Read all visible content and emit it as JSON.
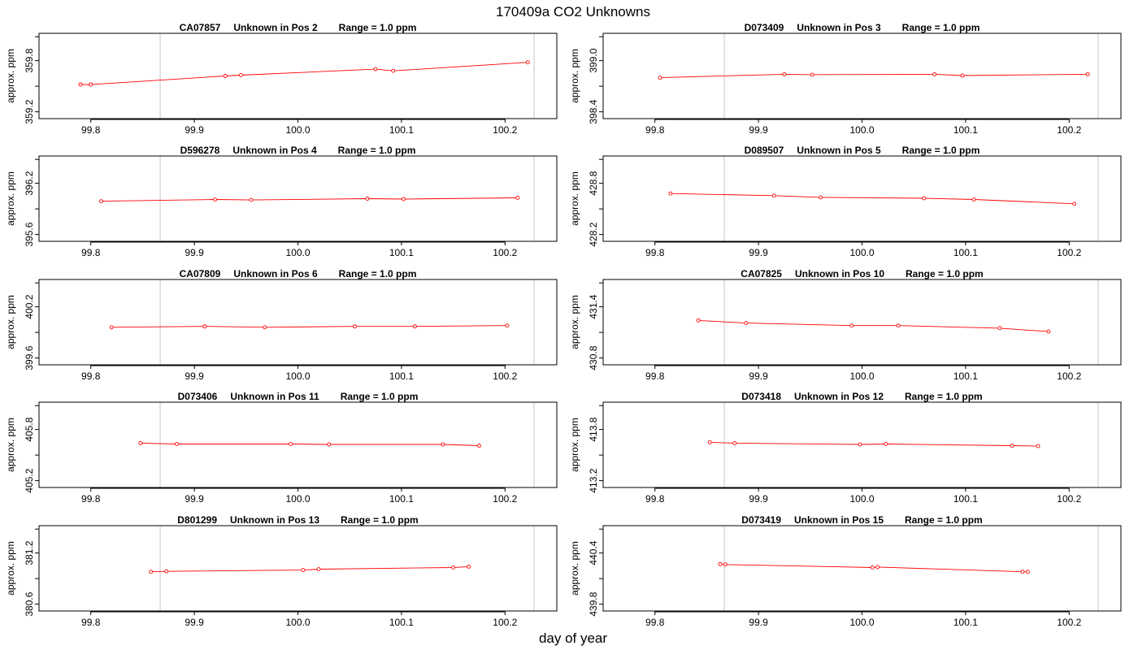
{
  "title": "170409a  CO2 Unknowns",
  "xlabel": "day of year",
  "colors": {
    "series": "#ff0000",
    "marker_lines": "#d3d3d3",
    "frame": "#000000"
  },
  "chart_data": [
    {
      "type": "line",
      "sample": "CA07857",
      "position": "Unknown in Pos 2",
      "range_label": "Range = 1.0 ppm",
      "ylabel": "approx. ppm",
      "xlim": [
        99.75,
        100.25
      ],
      "ylim": [
        359.12,
        360.12
      ],
      "xticks": [
        "99.8",
        "99.9",
        "100.0",
        "100.1",
        "100.2"
      ],
      "yticks": [
        "359.2",
        "359.8"
      ],
      "vlines": [
        99.867,
        100.228
      ],
      "x": [
        99.79,
        99.8,
        99.93,
        99.945,
        100.075,
        100.092,
        100.222
      ],
      "y": [
        359.52,
        359.52,
        359.62,
        359.63,
        359.7,
        359.68,
        359.78
      ]
    },
    {
      "type": "line",
      "sample": "D073409",
      "position": "Unknown in Pos 3",
      "range_label": "Range = 1.0 ppm",
      "ylabel": "approx. ppm",
      "xlim": [
        99.75,
        100.25
      ],
      "ylim": [
        398.32,
        399.32
      ],
      "xticks": [
        "99.8",
        "99.9",
        "100.0",
        "100.1",
        "100.2"
      ],
      "yticks": [
        "398.4",
        "399.0"
      ],
      "vlines": [
        99.867,
        100.228
      ],
      "x": [
        99.805,
        99.925,
        99.952,
        100.07,
        100.097,
        100.218
      ],
      "y": [
        398.8,
        398.84,
        398.835,
        398.84,
        398.825,
        398.84
      ]
    },
    {
      "type": "line",
      "sample": "D596278",
      "position": "Unknown in Pos 4",
      "range_label": "Range = 1.0 ppm",
      "ylabel": "approx. ppm",
      "xlim": [
        99.75,
        100.25
      ],
      "ylim": [
        395.52,
        396.52
      ],
      "xticks": [
        "99.8",
        "99.9",
        "100.0",
        "100.1",
        "100.2"
      ],
      "yticks": [
        "395.6",
        "396.2"
      ],
      "vlines": [
        99.867,
        100.228
      ],
      "x": [
        99.81,
        99.92,
        99.955,
        100.067,
        100.102,
        100.212
      ],
      "y": [
        395.99,
        396.01,
        396.005,
        396.02,
        396.015,
        396.03
      ]
    },
    {
      "type": "line",
      "sample": "D089507",
      "position": "Unknown in Pos 5",
      "range_label": "Range = 1.0 ppm",
      "ylabel": "approx. ppm",
      "xlim": [
        99.75,
        100.25
      ],
      "ylim": [
        428.12,
        429.12
      ],
      "xticks": [
        "99.8",
        "99.9",
        "100.0",
        "100.1",
        "100.2"
      ],
      "yticks": [
        "428.2",
        "428.8"
      ],
      "vlines": [
        99.867,
        100.228
      ],
      "x": [
        99.815,
        99.915,
        99.96,
        100.06,
        100.108,
        100.205
      ],
      "y": [
        428.68,
        428.655,
        428.635,
        428.625,
        428.61,
        428.56
      ]
    },
    {
      "type": "line",
      "sample": "CA07809",
      "position": "Unknown in Pos 6",
      "range_label": "Range = 1.0 ppm",
      "ylabel": "approx. ppm",
      "xlim": [
        99.75,
        100.25
      ],
      "ylim": [
        399.52,
        400.52
      ],
      "xticks": [
        "99.8",
        "99.9",
        "100.0",
        "100.1",
        "100.2"
      ],
      "yticks": [
        "399.6",
        "400.2"
      ],
      "vlines": [
        99.867,
        100.228
      ],
      "x": [
        99.82,
        99.91,
        99.968,
        100.055,
        100.113,
        100.202
      ],
      "y": [
        399.96,
        399.97,
        399.96,
        399.97,
        399.97,
        399.98
      ]
    },
    {
      "type": "line",
      "sample": "CA07825",
      "position": "Unknown in Pos 10",
      "range_label": "Range = 1.0 ppm",
      "ylabel": "approx. ppm",
      "xlim": [
        99.75,
        100.25
      ],
      "ylim": [
        430.72,
        431.72
      ],
      "xticks": [
        "99.8",
        "99.9",
        "100.0",
        "100.1",
        "100.2"
      ],
      "yticks": [
        "430.8",
        "431.4"
      ],
      "vlines": [
        99.867,
        100.228
      ],
      "x": [
        99.842,
        99.888,
        99.99,
        100.035,
        100.133,
        100.18
      ],
      "y": [
        431.24,
        431.21,
        431.18,
        431.18,
        431.15,
        431.11
      ]
    },
    {
      "type": "line",
      "sample": "D073406",
      "position": "Unknown in Pos 11",
      "range_label": "Range = 1.0 ppm",
      "ylabel": "approx. ppm",
      "xlim": [
        99.75,
        100.25
      ],
      "ylim": [
        405.12,
        406.12
      ],
      "xticks": [
        "99.8",
        "99.9",
        "100.0",
        "100.1",
        "100.2"
      ],
      "yticks": [
        "405.2",
        "405.8"
      ],
      "vlines": [
        99.867,
        100.228
      ],
      "x": [
        99.848,
        99.883,
        99.993,
        100.03,
        100.14,
        100.175
      ],
      "y": [
        405.64,
        405.63,
        405.63,
        405.625,
        405.625,
        405.61
      ]
    },
    {
      "type": "line",
      "sample": "D073418",
      "position": "Unknown in Pos 12",
      "range_label": "Range = 1.0 ppm",
      "ylabel": "approx. ppm",
      "xlim": [
        99.75,
        100.25
      ],
      "ylim": [
        413.12,
        414.12
      ],
      "xticks": [
        "99.8",
        "99.9",
        "100.0",
        "100.1",
        "100.2"
      ],
      "yticks": [
        "413.2",
        "413.8"
      ],
      "vlines": [
        99.867,
        100.228
      ],
      "x": [
        99.853,
        99.877,
        99.998,
        100.023,
        100.145,
        100.17
      ],
      "y": [
        413.65,
        413.64,
        413.625,
        413.63,
        413.61,
        413.605
      ]
    },
    {
      "type": "line",
      "sample": "D801299",
      "position": "Unknown in Pos 13",
      "range_label": "Range = 1.0 ppm",
      "ylabel": "approx. ppm",
      "xlim": [
        99.75,
        100.25
      ],
      "ylim": [
        380.52,
        381.52
      ],
      "xticks": [
        "99.8",
        "99.9",
        "100.0",
        "100.1",
        "100.2"
      ],
      "yticks": [
        "380.6",
        "381.2"
      ],
      "vlines": [
        99.867,
        100.228
      ],
      "x": [
        99.858,
        99.873,
        100.005,
        100.02,
        100.15,
        100.165
      ],
      "y": [
        380.98,
        380.985,
        381.0,
        381.01,
        381.03,
        381.04
      ]
    },
    {
      "type": "line",
      "sample": "D073419",
      "position": "Unknown in Pos 15",
      "range_label": "Range = 1.0 ppm",
      "ylabel": "approx. ppm",
      "xlim": [
        99.75,
        100.25
      ],
      "ylim": [
        439.72,
        440.72
      ],
      "xticks": [
        "99.8",
        "99.9",
        "100.0",
        "100.1",
        "100.2"
      ],
      "yticks": [
        "439.8",
        "440.4"
      ],
      "vlines": [
        99.867,
        100.228
      ],
      "x": [
        99.863,
        99.868,
        100.01,
        100.015,
        100.155,
        100.16
      ],
      "y": [
        440.27,
        440.265,
        440.23,
        440.235,
        440.18,
        440.18
      ]
    }
  ]
}
